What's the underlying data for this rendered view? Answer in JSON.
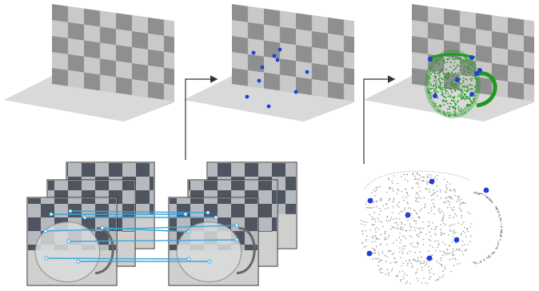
{
  "diagram": {
    "scenes": [
      {
        "name": "calibration-board-scene",
        "stage": 1
      },
      {
        "name": "sparse-keypoints-scene",
        "stage": 2
      },
      {
        "name": "pitcher-reconstruction-scene",
        "stage": 3
      }
    ],
    "colors": {
      "board_dark": "#8f8f8f",
      "board_light": "#c9c9c9",
      "floor": "#d6d6d6",
      "keypoint": "#1f3fd6",
      "pointcloud_green": "#1f9a1f",
      "match_line": "#3aa6e0",
      "arrow": "#333333",
      "gray_points": "#9a9a9a"
    },
    "keypoint_count": 10,
    "image_stacks": 2,
    "images_per_stack": 3,
    "feature_matches": 8
  }
}
